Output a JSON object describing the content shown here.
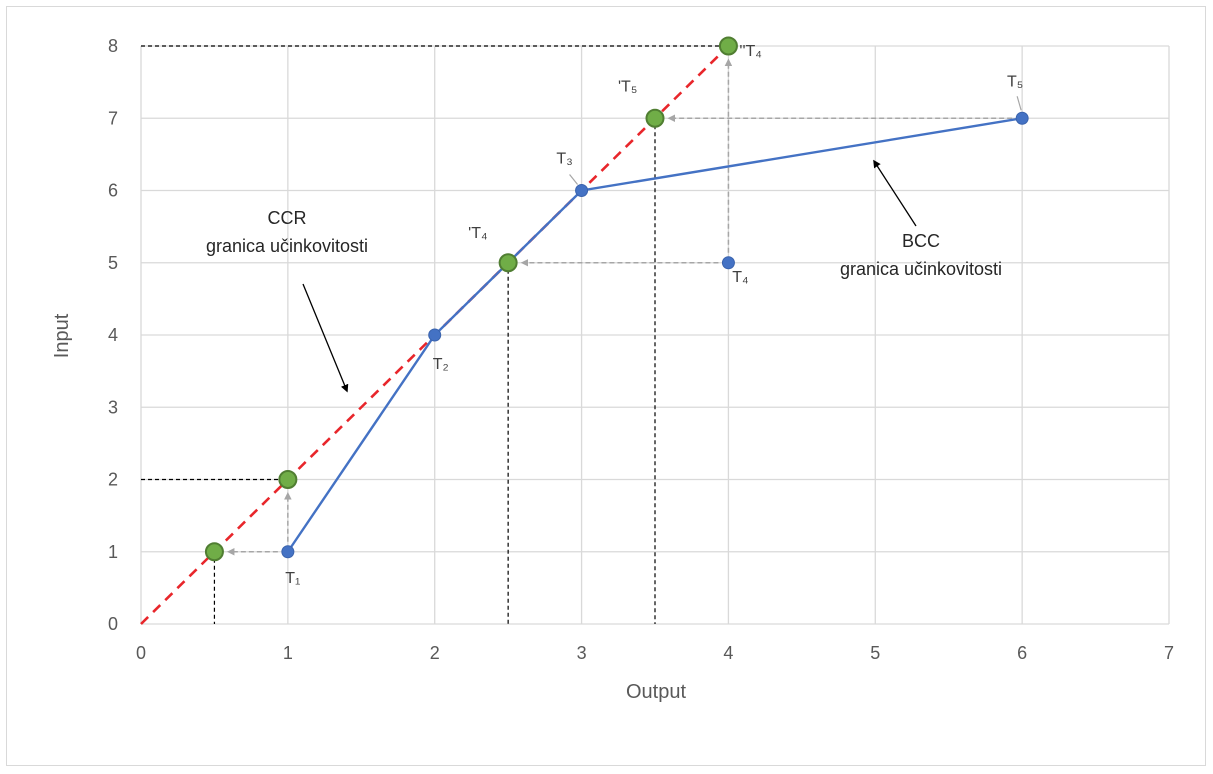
{
  "chart_data": {
    "type": "line",
    "xlabel": "Output",
    "ylabel": "Input",
    "xlim": [
      0,
      7
    ],
    "ylim": [
      0,
      8
    ],
    "x_ticks": [
      "0",
      "1",
      "2",
      "3",
      "4",
      "5",
      "6",
      "7"
    ],
    "y_ticks": [
      "0",
      "1",
      "2",
      "3",
      "4",
      "5",
      "6",
      "7",
      "8"
    ],
    "grid": true,
    "colors": {
      "ccr": "#e8262b",
      "bcc": "#4472c4",
      "efficient_points": "#70ad47",
      "projection": "#a6a6a6",
      "guide": "#000000"
    },
    "series": [
      {
        "key": "ccr",
        "x": [
          0,
          4
        ],
        "y": [
          0,
          8
        ]
      },
      {
        "key": "bcc",
        "x": [
          1,
          2,
          3,
          6
        ],
        "y": [
          1,
          4,
          6,
          7
        ]
      }
    ],
    "units": [
      {
        "label": "T₁",
        "x": 1,
        "y": 1
      },
      {
        "label": "T₂",
        "x": 2,
        "y": 4
      },
      {
        "label": "T₃",
        "x": 3,
        "y": 6
      },
      {
        "label": "T₄",
        "x": 4,
        "y": 5
      },
      {
        "label": "T₅",
        "x": 6,
        "y": 7
      }
    ],
    "projections": [
      {
        "x": 0.5,
        "y": 1,
        "label": ""
      },
      {
        "x": 1,
        "y": 2,
        "label": ""
      },
      {
        "x": 2.5,
        "y": 5,
        "label": "'T₄"
      },
      {
        "x": 3.5,
        "y": 7,
        "label": "'T₅"
      },
      {
        "x": 4,
        "y": 8,
        "label": "''T₄"
      }
    ],
    "arrows": [
      {
        "from": [
          1,
          1
        ],
        "to": [
          0.5,
          1
        ]
      },
      {
        "from": [
          1,
          1
        ],
        "to": [
          1,
          2
        ]
      },
      {
        "from": [
          4,
          5
        ],
        "to": [
          2.5,
          5
        ]
      },
      {
        "from": [
          4,
          5
        ],
        "to": [
          4,
          8
        ]
      },
      {
        "from": [
          6,
          7
        ],
        "to": [
          3.5,
          7
        ]
      }
    ],
    "annotations": [
      {
        "line1": "CCR",
        "line2": "granica učinkovitosti"
      },
      {
        "line1": "BCC",
        "line2": "granica učinkovitosti"
      }
    ]
  }
}
